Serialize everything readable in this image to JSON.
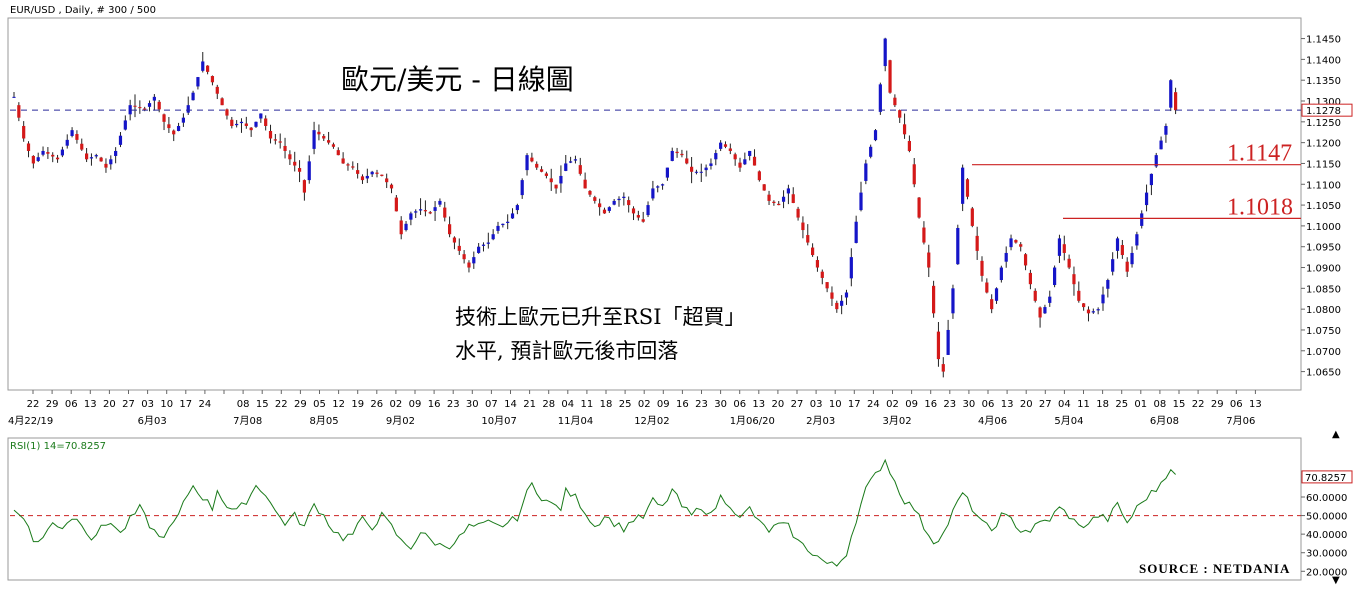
{
  "header": {
    "symbol_label": "EUR/USD , Daily, # 300 / 500",
    "title": "歐元/美元 - 日線圖"
  },
  "annotation": {
    "line1": "技術上歐元已升至RSI「超買」",
    "line2": "水平, 預計歐元後市回落"
  },
  "levels": [
    {
      "label": "1.1147",
      "value": 1.1147
    },
    {
      "label": "1.1018",
      "value": 1.1018
    }
  ],
  "current_price": {
    "label": "1.1278",
    "value": 1.1278
  },
  "rsi": {
    "label": "RSI(1) 14=70.8257",
    "current_label": "70.8257",
    "current_value": 70.8257,
    "reference_line": 50,
    "y_ticks": [
      "20.0000",
      "30.0000",
      "40.0000",
      "50.0000",
      "60.0000"
    ]
  },
  "source": "SOURCE : NETDANIA",
  "colors": {
    "up": "#1515c8",
    "down": "#d41919",
    "level_line": "#cc2222",
    "rsi_line": "#1a7a1a",
    "ref_line": "#cc2222",
    "price_dash": "#2b2b9b"
  },
  "chart_data": {
    "type": "candlestick",
    "title": "歐元/美元 - 日線圖",
    "ylim": [
      1.0625,
      1.1485
    ],
    "y_ticks": [
      "1.1450",
      "1.1400",
      "1.1350",
      "1.1300",
      "1.1250",
      "1.1200",
      "1.1150",
      "1.1100",
      "1.1050",
      "1.1000",
      "1.0950",
      "1.0900",
      "1.0850",
      "1.0800",
      "1.0750",
      "1.0700",
      "1.0650"
    ],
    "x_day_ticks": [
      "22",
      "29",
      "06",
      "13",
      "20",
      "27",
      "03",
      "10",
      "17",
      "24",
      "",
      "08",
      "15",
      "22",
      "29",
      "05",
      "12",
      "19",
      "26",
      "02",
      "09",
      "16",
      "23",
      "30",
      "07",
      "14",
      "21",
      "28",
      "04",
      "11",
      "18",
      "25",
      "02",
      "09",
      "16",
      "23",
      "30",
      "06",
      "13",
      "20",
      "27",
      "03",
      "10",
      "17",
      "24",
      "02",
      "09",
      "16",
      "23",
      "30",
      "06",
      "13",
      "20",
      "27",
      "04",
      "11",
      "18",
      "25",
      "01",
      "08",
      "15",
      "22",
      "29",
      "06",
      "13"
    ],
    "x_month_ticks": [
      {
        "label": "4月22/19",
        "index": 0
      },
      {
        "label": "6月03",
        "index": 6
      },
      {
        "label": "7月08",
        "index": 11
      },
      {
        "label": "8月05",
        "index": 15
      },
      {
        "label": "9月02",
        "index": 19
      },
      {
        "label": "10月07",
        "index": 24
      },
      {
        "label": "11月04",
        "index": 28
      },
      {
        "label": "12月02",
        "index": 32
      },
      {
        "label": "1月06/20",
        "index": 37
      },
      {
        "label": "2月03",
        "index": 41
      },
      {
        "label": "3月02",
        "index": 45
      },
      {
        "label": "4月06",
        "index": 50
      },
      {
        "label": "5月04",
        "index": 54
      },
      {
        "label": "6月08",
        "index": 59
      },
      {
        "label": "7月06",
        "index": 63
      }
    ],
    "price_path": [
      [
        0,
        1.131
      ],
      [
        2,
        1.121
      ],
      [
        4,
        1.115
      ],
      [
        6,
        1.118
      ],
      [
        9,
        1.116
      ],
      [
        12,
        1.123
      ],
      [
        15,
        1.116
      ],
      [
        17,
        1.117
      ],
      [
        19,
        1.114
      ],
      [
        21,
        1.118
      ],
      [
        24,
        1.129
      ],
      [
        27,
        1.128
      ],
      [
        29,
        1.131
      ],
      [
        31,
        1.125
      ],
      [
        33,
        1.122
      ],
      [
        35,
        1.126
      ],
      [
        37,
        1.132
      ],
      [
        39,
        1.1395
      ],
      [
        41,
        1.1345
      ],
      [
        43,
        1.129
      ],
      [
        45,
        1.124
      ],
      [
        47,
        1.125
      ],
      [
        49,
        1.123
      ],
      [
        51,
        1.127
      ],
      [
        53,
        1.121
      ],
      [
        55,
        1.12
      ],
      [
        57,
        1.116
      ],
      [
        59,
        1.113
      ],
      [
        60,
        1.108
      ],
      [
        62,
        1.123
      ],
      [
        64,
        1.121
      ],
      [
        66,
        1.119
      ],
      [
        68,
        1.115
      ],
      [
        70,
        1.114
      ],
      [
        72,
        1.111
      ],
      [
        74,
        1.113
      ],
      [
        76,
        1.112
      ],
      [
        78,
        1.109
      ],
      [
        80,
        1.098
      ],
      [
        82,
        1.103
      ],
      [
        84,
        1.104
      ],
      [
        86,
        1.103
      ],
      [
        88,
        1.106
      ],
      [
        90,
        1.098
      ],
      [
        92,
        1.094
      ],
      [
        94,
        1.09
      ],
      [
        96,
        1.095
      ],
      [
        98,
        1.096
      ],
      [
        100,
        1.1
      ],
      [
        102,
        1.101
      ],
      [
        104,
        1.105
      ],
      [
        106,
        1.117
      ],
      [
        108,
        1.114
      ],
      [
        110,
        1.112
      ],
      [
        112,
        1.109
      ],
      [
        114,
        1.115
      ],
      [
        116,
        1.116
      ],
      [
        118,
        1.109
      ],
      [
        120,
        1.106
      ],
      [
        122,
        1.103
      ],
      [
        124,
        1.106
      ],
      [
        126,
        1.107
      ],
      [
        128,
        1.103
      ],
      [
        130,
        1.101
      ],
      [
        132,
        1.109
      ],
      [
        134,
        1.11
      ],
      [
        136,
        1.118
      ],
      [
        138,
        1.117
      ],
      [
        140,
        1.113
      ],
      [
        142,
        1.113
      ],
      [
        144,
        1.115
      ],
      [
        146,
        1.12
      ],
      [
        148,
        1.118
      ],
      [
        150,
        1.114
      ],
      [
        152,
        1.118
      ],
      [
        154,
        1.111
      ],
      [
        156,
        1.106
      ],
      [
        158,
        1.105
      ],
      [
        160,
        1.109
      ],
      [
        162,
        1.102
      ],
      [
        164,
        1.096
      ],
      [
        166,
        1.09
      ],
      [
        168,
        1.085
      ],
      [
        170,
        1.08
      ],
      [
        172,
        1.084
      ],
      [
        174,
        1.101
      ],
      [
        176,
        1.115
      ],
      [
        178,
        1.123
      ],
      [
        180,
        1.145
      ],
      [
        181,
        1.132
      ],
      [
        183,
        1.126
      ],
      [
        185,
        1.118
      ],
      [
        187,
        1.102
      ],
      [
        189,
        1.09
      ],
      [
        191,
        1.068
      ],
      [
        192,
        1.065
      ],
      [
        194,
        1.085
      ],
      [
        196,
        1.114
      ],
      [
        198,
        1.1
      ],
      [
        200,
        1.088
      ],
      [
        202,
        1.08
      ],
      [
        204,
        1.09
      ],
      [
        206,
        1.097
      ],
      [
        208,
        1.095
      ],
      [
        210,
        1.086
      ],
      [
        212,
        1.078
      ],
      [
        214,
        1.083
      ],
      [
        216,
        1.097
      ],
      [
        218,
        1.09
      ],
      [
        220,
        1.082
      ],
      [
        222,
        1.079
      ],
      [
        224,
        1.08
      ],
      [
        226,
        1.087
      ],
      [
        228,
        1.097
      ],
      [
        230,
        1.089
      ],
      [
        232,
        1.098
      ],
      [
        234,
        1.108
      ],
      [
        236,
        1.117
      ],
      [
        238,
        1.124
      ],
      [
        239,
        1.135
      ],
      [
        240,
        1.1278
      ]
    ],
    "rsi_path": [
      [
        0,
        53
      ],
      [
        2,
        50
      ],
      [
        4,
        36
      ],
      [
        6,
        38
      ],
      [
        8,
        46
      ],
      [
        10,
        44
      ],
      [
        12,
        49
      ],
      [
        14,
        46
      ],
      [
        16,
        38
      ],
      [
        18,
        43
      ],
      [
        20,
        47
      ],
      [
        22,
        40
      ],
      [
        24,
        48
      ],
      [
        26,
        54
      ],
      [
        28,
        45
      ],
      [
        30,
        38
      ],
      [
        32,
        42
      ],
      [
        34,
        50
      ],
      [
        36,
        62
      ],
      [
        37,
        66
      ],
      [
        39,
        60
      ],
      [
        41,
        54
      ],
      [
        42,
        64
      ],
      [
        44,
        55
      ],
      [
        46,
        52
      ],
      [
        48,
        58
      ],
      [
        50,
        66
      ],
      [
        52,
        62
      ],
      [
        54,
        52
      ],
      [
        56,
        46
      ],
      [
        58,
        50
      ],
      [
        60,
        44
      ],
      [
        62,
        56
      ],
      [
        64,
        50
      ],
      [
        66,
        42
      ],
      [
        68,
        38
      ],
      [
        70,
        40
      ],
      [
        72,
        48
      ],
      [
        74,
        44
      ],
      [
        76,
        50
      ],
      [
        78,
        44
      ],
      [
        80,
        36
      ],
      [
        82,
        33
      ],
      [
        84,
        41
      ],
      [
        86,
        37
      ],
      [
        88,
        34
      ],
      [
        90,
        34
      ],
      [
        92,
        38
      ],
      [
        94,
        44
      ],
      [
        96,
        44
      ],
      [
        98,
        46
      ],
      [
        100,
        44
      ],
      [
        102,
        46
      ],
      [
        104,
        49
      ],
      [
        106,
        62
      ],
      [
        107,
        67
      ],
      [
        109,
        60
      ],
      [
        111,
        56
      ],
      [
        113,
        54
      ],
      [
        114,
        63
      ],
      [
        116,
        60
      ],
      [
        118,
        52
      ],
      [
        120,
        44
      ],
      [
        122,
        50
      ],
      [
        124,
        46
      ],
      [
        126,
        43
      ],
      [
        128,
        48
      ],
      [
        130,
        49
      ],
      [
        132,
        58
      ],
      [
        134,
        54
      ],
      [
        136,
        64
      ],
      [
        138,
        55
      ],
      [
        140,
        50
      ],
      [
        142,
        55
      ],
      [
        144,
        50
      ],
      [
        146,
        60
      ],
      [
        148,
        56
      ],
      [
        150,
        48
      ],
      [
        152,
        54
      ],
      [
        154,
        46
      ],
      [
        156,
        42
      ],
      [
        158,
        45
      ],
      [
        160,
        44
      ],
      [
        162,
        36
      ],
      [
        164,
        32
      ],
      [
        166,
        28
      ],
      [
        168,
        24
      ],
      [
        170,
        23
      ],
      [
        172,
        30
      ],
      [
        174,
        48
      ],
      [
        176,
        64
      ],
      [
        178,
        72
      ],
      [
        180,
        80
      ],
      [
        182,
        68
      ],
      [
        184,
        58
      ],
      [
        186,
        54
      ],
      [
        188,
        44
      ],
      [
        190,
        36
      ],
      [
        192,
        40
      ],
      [
        194,
        52
      ],
      [
        196,
        62
      ],
      [
        198,
        54
      ],
      [
        200,
        46
      ],
      [
        202,
        42
      ],
      [
        204,
        50
      ],
      [
        206,
        48
      ],
      [
        208,
        42
      ],
      [
        210,
        42
      ],
      [
        212,
        46
      ],
      [
        214,
        48
      ],
      [
        216,
        54
      ],
      [
        218,
        50
      ],
      [
        220,
        44
      ],
      [
        222,
        46
      ],
      [
        224,
        50
      ],
      [
        226,
        48
      ],
      [
        228,
        56
      ],
      [
        230,
        46
      ],
      [
        232,
        54
      ],
      [
        234,
        60
      ],
      [
        236,
        64
      ],
      [
        238,
        72
      ],
      [
        239,
        76
      ],
      [
        240,
        70.8
      ]
    ]
  }
}
